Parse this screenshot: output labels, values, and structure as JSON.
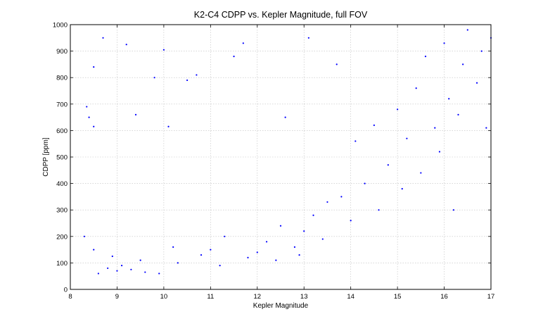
{
  "chart_data": {
    "type": "scatter",
    "title": "K2-C4 CDPP vs. Kepler Magnitude, full FOV",
    "xlabel": "Kepler Magnitude",
    "ylabel": "CDPP [ppm]",
    "xlim": [
      8,
      17
    ],
    "ylim": [
      0,
      1000
    ],
    "xticks": [
      8,
      9,
      10,
      11,
      12,
      13,
      14,
      15,
      16,
      17
    ],
    "yticks": [
      0,
      100,
      200,
      300,
      400,
      500,
      600,
      700,
      800,
      900,
      1000
    ],
    "grid": true,
    "marker_color": "#0000ff",
    "series": [
      {
        "values": [
          [
            8.3,
            200
          ],
          [
            8.35,
            690
          ],
          [
            8.4,
            650
          ],
          [
            8.5,
            840
          ],
          [
            8.5,
            615
          ],
          [
            8.7,
            950
          ],
          [
            8.5,
            150
          ],
          [
            8.6,
            60
          ],
          [
            8.8,
            80
          ],
          [
            8.9,
            125
          ],
          [
            9.0,
            70
          ],
          [
            9.1,
            90
          ],
          [
            9.2,
            925
          ],
          [
            9.3,
            75
          ],
          [
            9.4,
            660
          ],
          [
            9.5,
            110
          ],
          [
            9.6,
            65
          ],
          [
            9.8,
            800
          ],
          [
            9.9,
            60
          ],
          [
            10.0,
            905
          ],
          [
            10.1,
            615
          ],
          [
            10.2,
            160
          ],
          [
            10.3,
            100
          ],
          [
            10.5,
            790
          ],
          [
            10.7,
            810
          ],
          [
            10.8,
            130
          ],
          [
            11.0,
            150
          ],
          [
            11.2,
            90
          ],
          [
            11.3,
            200
          ],
          [
            11.5,
            880
          ],
          [
            11.7,
            930
          ],
          [
            11.8,
            120
          ],
          [
            12.0,
            140
          ],
          [
            12.2,
            180
          ],
          [
            12.4,
            110
          ],
          [
            12.5,
            240
          ],
          [
            12.6,
            650
          ],
          [
            12.8,
            160
          ],
          [
            12.9,
            130
          ],
          [
            13.0,
            220
          ],
          [
            13.1,
            950
          ],
          [
            13.2,
            280
          ],
          [
            13.4,
            190
          ],
          [
            13.5,
            330
          ],
          [
            13.7,
            850
          ],
          [
            13.8,
            350
          ],
          [
            14.0,
            260
          ],
          [
            14.1,
            560
          ],
          [
            14.3,
            400
          ],
          [
            14.5,
            620
          ],
          [
            14.6,
            300
          ],
          [
            14.8,
            470
          ],
          [
            15.0,
            680
          ],
          [
            15.1,
            380
          ],
          [
            15.2,
            570
          ],
          [
            15.4,
            760
          ],
          [
            15.5,
            440
          ],
          [
            15.6,
            880
          ],
          [
            15.8,
            610
          ],
          [
            15.9,
            520
          ],
          [
            16.0,
            930
          ],
          [
            16.1,
            720
          ],
          [
            16.3,
            660
          ],
          [
            16.4,
            850
          ],
          [
            16.5,
            980
          ],
          [
            16.7,
            780
          ],
          [
            16.8,
            900
          ],
          [
            16.9,
            610
          ],
          [
            17.0,
            950
          ],
          [
            16.2,
            300
          ]
        ]
      }
    ]
  }
}
